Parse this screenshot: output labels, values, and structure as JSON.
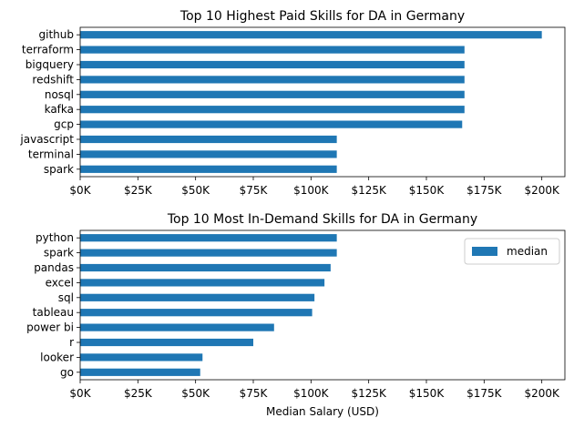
{
  "chart_data": [
    {
      "type": "bar",
      "orientation": "horizontal",
      "title": "Top 10 Highest Paid Skills for DA in Germany",
      "xlabel": "",
      "ylabel": "",
      "categories": [
        "github",
        "terraform",
        "bigquery",
        "redshift",
        "nosql",
        "kafka",
        "gcp",
        "javascript",
        "terminal",
        "spark"
      ],
      "values": [
        200000,
        166500,
        166500,
        166500,
        166500,
        166500,
        165500,
        111175,
        111175,
        111175
      ],
      "xlim": [
        0,
        210000
      ],
      "xticks": [
        0,
        25000,
        50000,
        75000,
        100000,
        125000,
        150000,
        175000,
        200000
      ],
      "xtick_labels": [
        "$0K",
        "$25K",
        "$50K",
        "$75K",
        "$100K",
        "$125K",
        "$150K",
        "$175K",
        "$200K"
      ],
      "legend": null,
      "grid": false,
      "color": "#1f77b4"
    },
    {
      "type": "bar",
      "orientation": "horizontal",
      "title": "Top 10 Most In-Demand Skills for DA in Germany",
      "xlabel": "Median Salary (USD)",
      "ylabel": "",
      "categories": [
        "python",
        "spark",
        "pandas",
        "excel",
        "sql",
        "tableau",
        "power bi",
        "r",
        "looker",
        "go"
      ],
      "values": [
        111175,
        111175,
        108500,
        105837,
        101500,
        100500,
        84000,
        75000,
        53000,
        52000
      ],
      "xlim": [
        0,
        210000
      ],
      "xticks": [
        0,
        25000,
        50000,
        75000,
        100000,
        125000,
        150000,
        175000,
        200000
      ],
      "xtick_labels": [
        "$0K",
        "$25K",
        "$50K",
        "$75K",
        "$100K",
        "$125K",
        "$150K",
        "$175K",
        "$200K"
      ],
      "series": [
        {
          "name": "median",
          "values": [
            111175,
            111175,
            108500,
            105837,
            101500,
            100500,
            84000,
            75000,
            53000,
            52000
          ]
        }
      ],
      "legend": "top-right",
      "grid": false,
      "color": "#1f77b4"
    }
  ]
}
